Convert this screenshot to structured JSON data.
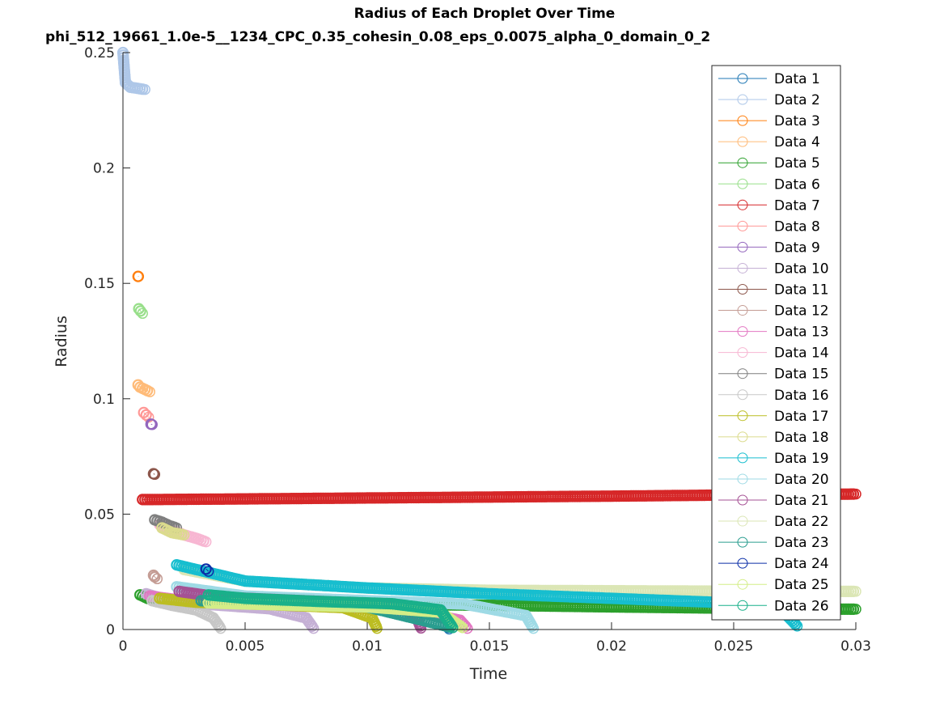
{
  "chart_data": {
    "type": "scatter",
    "title": "Radius of Each Droplet Over Time",
    "subtitle": "phi_512_19661_1.0e-5__1234_CPC_0.35_cohesin_0.08_eps_0.0075_alpha_0_domain_0_2",
    "xlabel": "Time",
    "ylabel": "Radius",
    "xlim": [
      0,
      0.03
    ],
    "ylim": [
      0,
      0.25
    ],
    "xticks": [
      0,
      0.005,
      0.01,
      0.015,
      0.02,
      0.025,
      0.03
    ],
    "xtick_labels": [
      "0",
      "0.005",
      "0.01",
      "0.015",
      "0.02",
      "0.025",
      "0.03"
    ],
    "yticks": [
      0,
      0.05,
      0.1,
      0.15,
      0.2,
      0.25
    ],
    "ytick_labels": [
      "0",
      "0.05",
      "0.1",
      "0.15",
      "0.2",
      "0.25"
    ],
    "grid": false,
    "legend_position": "top-right",
    "series": [
      {
        "name": "Data 1",
        "color": "#1f77b4",
        "x": [
          0.0133,
          0.01335
        ],
        "y": [
          0.001,
          0.0002
        ]
      },
      {
        "name": "Data 2",
        "color": "#aec7e8",
        "x": [
          0.0,
          0.0001,
          0.0003,
          0.0006,
          0.0009
        ],
        "y": [
          0.25,
          0.237,
          0.235,
          0.2345,
          0.234
        ]
      },
      {
        "name": "Data 3",
        "color": "#ff7f0e",
        "x": [
          0.00062,
          0.00064
        ],
        "y": [
          0.153,
          0.153
        ]
      },
      {
        "name": "Data 4",
        "color": "#ffbb78",
        "x": [
          0.00062,
          0.0007,
          0.0009,
          0.0011
        ],
        "y": [
          0.106,
          0.105,
          0.104,
          0.103
        ]
      },
      {
        "name": "Data 5",
        "color": "#2ca02c",
        "x": [
          0.0007,
          0.001,
          0.002,
          0.005,
          0.01,
          0.015,
          0.02,
          0.025,
          0.03
        ],
        "y": [
          0.015,
          0.0135,
          0.0125,
          0.0115,
          0.011,
          0.0105,
          0.0098,
          0.0092,
          0.0088
        ]
      },
      {
        "name": "Data 6",
        "color": "#98df8a",
        "x": [
          0.00065,
          0.00072,
          0.0008
        ],
        "y": [
          0.139,
          0.138,
          0.137
        ]
      },
      {
        "name": "Data 7",
        "color": "#d62728",
        "x": [
          0.0008,
          0.005,
          0.01,
          0.015,
          0.02,
          0.025,
          0.03
        ],
        "y": [
          0.0563,
          0.0566,
          0.057,
          0.0574,
          0.0578,
          0.0583,
          0.0587
        ]
      },
      {
        "name": "Data 8",
        "color": "#ff9896",
        "x": [
          0.00085,
          0.00095,
          0.00105
        ],
        "y": [
          0.094,
          0.093,
          0.092
        ]
      },
      {
        "name": "Data 9",
        "color": "#9467bd",
        "x": [
          0.00115,
          0.0012
        ],
        "y": [
          0.089,
          0.0888
        ]
      },
      {
        "name": "Data 10",
        "color": "#c5b0d5",
        "x": [
          0.00095,
          0.002,
          0.004,
          0.006,
          0.0075,
          0.0078
        ],
        "y": [
          0.0155,
          0.012,
          0.0105,
          0.009,
          0.005,
          0.0005
        ]
      },
      {
        "name": "Data 11",
        "color": "#8c564b",
        "x": [
          0.00125,
          0.0013
        ],
        "y": [
          0.0675,
          0.0672
        ]
      },
      {
        "name": "Data 12",
        "color": "#c49c94",
        "x": [
          0.00125,
          0.0013,
          0.0014
        ],
        "y": [
          0.0235,
          0.0228,
          0.022
        ]
      },
      {
        "name": "Data 13",
        "color": "#e377c2",
        "x": [
          0.0011,
          0.003,
          0.006,
          0.009,
          0.012,
          0.0138,
          0.0141
        ],
        "y": [
          0.0145,
          0.0118,
          0.0108,
          0.0098,
          0.008,
          0.004,
          0.0005
        ]
      },
      {
        "name": "Data 14",
        "color": "#f7b6d2",
        "x": [
          0.0015,
          0.002,
          0.0025,
          0.003,
          0.0034
        ],
        "y": [
          0.0455,
          0.043,
          0.041,
          0.0395,
          0.038
        ]
      },
      {
        "name": "Data 15",
        "color": "#7f7f7f",
        "x": [
          0.0013,
          0.0016,
          0.0019,
          0.0022
        ],
        "y": [
          0.0475,
          0.0465,
          0.045,
          0.044
        ]
      },
      {
        "name": "Data 16",
        "color": "#c7c7c7",
        "x": [
          0.0012,
          0.002,
          0.003,
          0.0037,
          0.004
        ],
        "y": [
          0.0125,
          0.0105,
          0.0085,
          0.005,
          0.0005
        ]
      },
      {
        "name": "Data 17",
        "color": "#bcbd22",
        "x": [
          0.0015,
          0.003,
          0.006,
          0.009,
          0.0102,
          0.0104
        ],
        "y": [
          0.0135,
          0.0118,
          0.0108,
          0.0095,
          0.005,
          0.0005
        ]
      },
      {
        "name": "Data 18",
        "color": "#dbdb8d",
        "x": [
          0.0016,
          0.002,
          0.0025
        ],
        "y": [
          0.044,
          0.042,
          0.041
        ]
      },
      {
        "name": "Data 19",
        "color": "#17becf",
        "x": [
          0.0022,
          0.005,
          0.01,
          0.015,
          0.02,
          0.025,
          0.027,
          0.0276
        ],
        "y": [
          0.028,
          0.021,
          0.018,
          0.0155,
          0.0135,
          0.0115,
          0.008,
          0.0015
        ]
      },
      {
        "name": "Data 20",
        "color": "#9edae5",
        "x": [
          0.0022,
          0.005,
          0.01,
          0.014,
          0.0165,
          0.0168
        ],
        "y": [
          0.0185,
          0.0145,
          0.0125,
          0.011,
          0.006,
          0.0005
        ]
      },
      {
        "name": "Data 21",
        "color": "#a55194",
        "x": [
          0.0023,
          0.004,
          0.008,
          0.011,
          0.012,
          0.0122
        ],
        "y": [
          0.0165,
          0.014,
          0.0122,
          0.0105,
          0.006,
          0.0006
        ]
      },
      {
        "name": "Data 22",
        "color": "#dbe6b5",
        "x": [
          0.0025,
          0.005,
          0.01,
          0.015,
          0.02,
          0.025,
          0.03
        ],
        "y": [
          0.026,
          0.021,
          0.018,
          0.017,
          0.0168,
          0.0166,
          0.0165
        ]
      },
      {
        "name": "Data 23",
        "color": "#2a9d8f",
        "x": [
          0.0032,
          0.006,
          0.01,
          0.0135
        ],
        "y": [
          0.0125,
          0.0112,
          0.0098,
          0.0008
        ]
      },
      {
        "name": "Data 24",
        "color": "#0b2fa8",
        "x": [
          0.0034,
          0.0035
        ],
        "y": [
          0.0262,
          0.0252
        ]
      },
      {
        "name": "Data 25",
        "color": "#d4ed87",
        "x": [
          0.0035,
          0.006,
          0.01,
          0.013,
          0.0139
        ],
        "y": [
          0.0115,
          0.0108,
          0.0098,
          0.0075,
          0.0008
        ]
      },
      {
        "name": "Data 26",
        "color": "#19b08a",
        "x": [
          0.0035,
          0.005,
          0.008,
          0.011,
          0.013,
          0.0135
        ],
        "y": [
          0.015,
          0.0135,
          0.0122,
          0.0112,
          0.0085,
          0.0008
        ]
      }
    ]
  }
}
